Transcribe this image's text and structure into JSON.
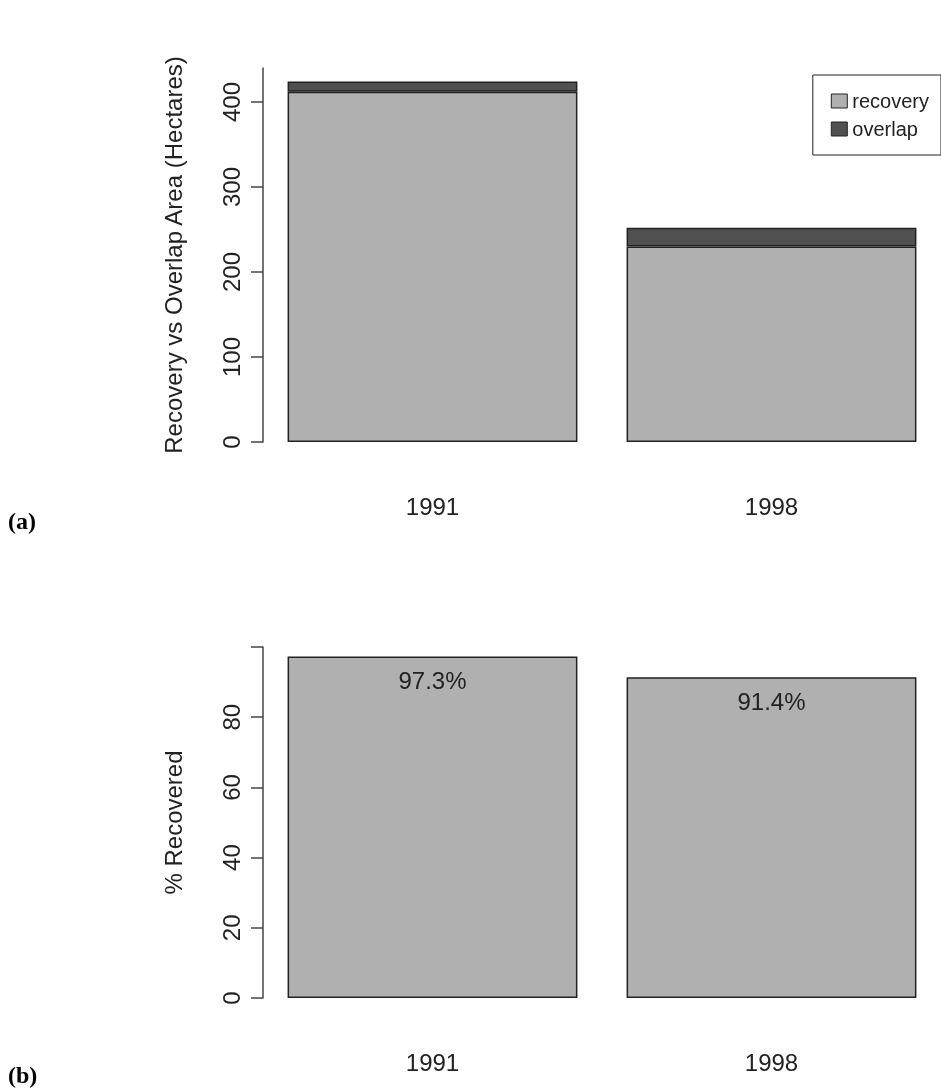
{
  "chart_data": [
    {
      "type": "bar",
      "ylabel": "Recovery vs Overlap Area (Hectares)",
      "categories": [
        "1991",
        "1998"
      ],
      "stacked": true,
      "series": [
        {
          "name": "recovery",
          "color": "#b0b0b0",
          "values": [
            412,
            230
          ]
        },
        {
          "name": "overlap",
          "color": "#505050",
          "values": [
            12,
            22
          ]
        }
      ],
      "ylim": [
        0,
        440
      ],
      "yticks": [
        0,
        100,
        200,
        300,
        400
      ],
      "grid": false,
      "legend": "top right",
      "annotations": [
        "(a)"
      ]
    },
    {
      "type": "bar",
      "ylabel": "% Recovered",
      "categories": [
        "1991",
        "1998"
      ],
      "values": [
        97.3,
        91.4
      ],
      "value_labels": [
        "97.3%",
        "91.4%"
      ],
      "color": "#b0b0b0",
      "ylim": [
        0,
        100
      ],
      "yticks": [
        0,
        20,
        40,
        60,
        80,
        {
          "value": 100,
          "label": null
        }
      ],
      "grid": false,
      "annotations": [
        "(b)"
      ]
    }
  ]
}
